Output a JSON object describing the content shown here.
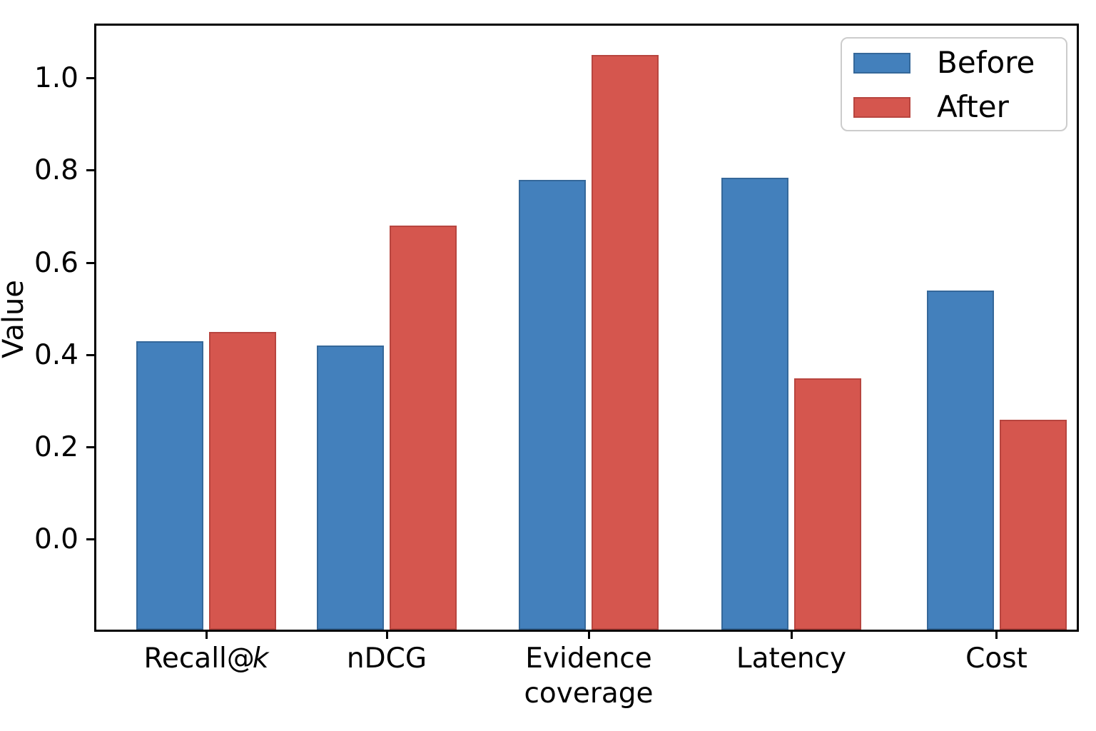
{
  "chart_data": {
    "type": "bar",
    "categories": [
      "Recall@k",
      "nDCG",
      "Evidence\ncoverage",
      "Latency",
      "Cost"
    ],
    "series": [
      {
        "name": "Before",
        "color": "#4380BC",
        "edge_color": "#35689A",
        "values": [
          0.43,
          0.42,
          0.78,
          0.785,
          0.54
        ]
      },
      {
        "name": "After",
        "color": "#D5564E",
        "edge_color": "#B8453F",
        "values": [
          0.45,
          0.68,
          1.05,
          0.35,
          0.26
        ]
      }
    ],
    "title": "",
    "xlabel": "",
    "ylabel": "Value",
    "yticks": [
      0.0,
      0.2,
      0.4,
      0.6,
      0.8,
      1.0
    ],
    "ylim": [
      -0.2,
      1.12
    ],
    "grid": false,
    "legend_position": "upper right"
  }
}
